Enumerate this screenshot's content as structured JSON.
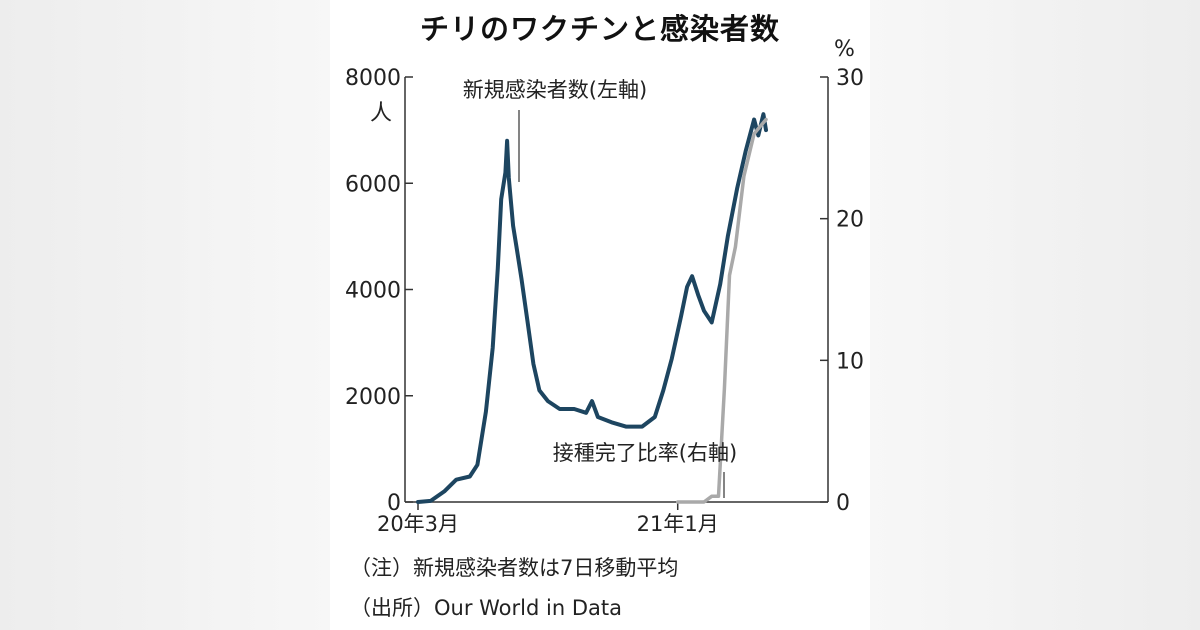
{
  "title": "チリのワクチンと感染者数",
  "notes": {
    "note": "（注）新規感染者数は7日移動平均",
    "source": "（出所）Our World in Data"
  },
  "colors": {
    "cases": "#1d4560",
    "vaccination": "#a9a9a9",
    "axis": "#333333",
    "text": "#222222"
  },
  "chart_data": {
    "type": "line",
    "x_axis": {
      "ticks": [
        {
          "label": "20年3月",
          "date": "2020-03-01"
        },
        {
          "label": "21年1月",
          "date": "2021-01-01"
        }
      ],
      "range": [
        "2020-03-01",
        "2021-06-20"
      ]
    },
    "y_left": {
      "unit": "人",
      "ticks": [
        0,
        2000,
        4000,
        6000,
        8000
      ],
      "tick_labels": [
        "0",
        "2000",
        "4000",
        "6000",
        "8000"
      ],
      "range": [
        0,
        8000
      ]
    },
    "y_right": {
      "unit": "%",
      "ticks": [
        0,
        10,
        20,
        30
      ],
      "tick_labels": [
        "0",
        "10",
        "20",
        "30"
      ],
      "range": [
        0,
        30
      ]
    },
    "series": [
      {
        "name": "新規感染者数(左軸)",
        "axis": "left",
        "points": [
          [
            "2020-03-01",
            0
          ],
          [
            "2020-03-16",
            20
          ],
          [
            "2020-04-01",
            200
          ],
          [
            "2020-04-15",
            420
          ],
          [
            "2020-05-01",
            480
          ],
          [
            "2020-05-10",
            700
          ],
          [
            "2020-05-20",
            1700
          ],
          [
            "2020-05-28",
            2900
          ],
          [
            "2020-06-03",
            4400
          ],
          [
            "2020-06-07",
            5700
          ],
          [
            "2020-06-12",
            6200
          ],
          [
            "2020-06-14",
            6800
          ],
          [
            "2020-06-16",
            6100
          ],
          [
            "2020-06-21",
            5200
          ],
          [
            "2020-06-25",
            4800
          ],
          [
            "2020-07-01",
            4200
          ],
          [
            "2020-07-08",
            3400
          ],
          [
            "2020-07-15",
            2600
          ],
          [
            "2020-07-22",
            2100
          ],
          [
            "2020-08-01",
            1900
          ],
          [
            "2020-08-15",
            1750
          ],
          [
            "2020-09-01",
            1750
          ],
          [
            "2020-09-15",
            1680
          ],
          [
            "2020-09-22",
            1900
          ],
          [
            "2020-09-29",
            1600
          ],
          [
            "2020-10-15",
            1500
          ],
          [
            "2020-11-01",
            1420
          ],
          [
            "2020-11-20",
            1420
          ],
          [
            "2020-12-05",
            1600
          ],
          [
            "2020-12-15",
            2100
          ],
          [
            "2020-12-25",
            2700
          ],
          [
            "2021-01-05",
            3500
          ],
          [
            "2021-01-12",
            4050
          ],
          [
            "2021-01-18",
            4250
          ],
          [
            "2021-01-25",
            3900
          ],
          [
            "2021-02-01",
            3600
          ],
          [
            "2021-02-10",
            3380
          ],
          [
            "2021-02-20",
            4100
          ],
          [
            "2021-03-01",
            5000
          ],
          [
            "2021-03-12",
            5900
          ],
          [
            "2021-03-22",
            6600
          ],
          [
            "2021-04-01",
            7200
          ],
          [
            "2021-04-06",
            6900
          ],
          [
            "2021-04-12",
            7300
          ],
          [
            "2021-04-15",
            7000
          ]
        ]
      },
      {
        "name": "接種完了比率(右軸)",
        "axis": "right",
        "points": [
          [
            "2021-01-01",
            0
          ],
          [
            "2021-02-01",
            0
          ],
          [
            "2021-02-10",
            0.4
          ],
          [
            "2021-02-18",
            0.4
          ],
          [
            "2021-02-25",
            8
          ],
          [
            "2021-03-03",
            16
          ],
          [
            "2021-03-10",
            18
          ],
          [
            "2021-03-20",
            23
          ],
          [
            "2021-04-01",
            26
          ],
          [
            "2021-04-15",
            27
          ]
        ]
      }
    ],
    "annotations": [
      {
        "text": "新規感染者数(左軸)",
        "series": 0
      },
      {
        "text": "接種完了比率(右軸)",
        "series": 1
      }
    ],
    "grid": false,
    "legend": "none"
  }
}
